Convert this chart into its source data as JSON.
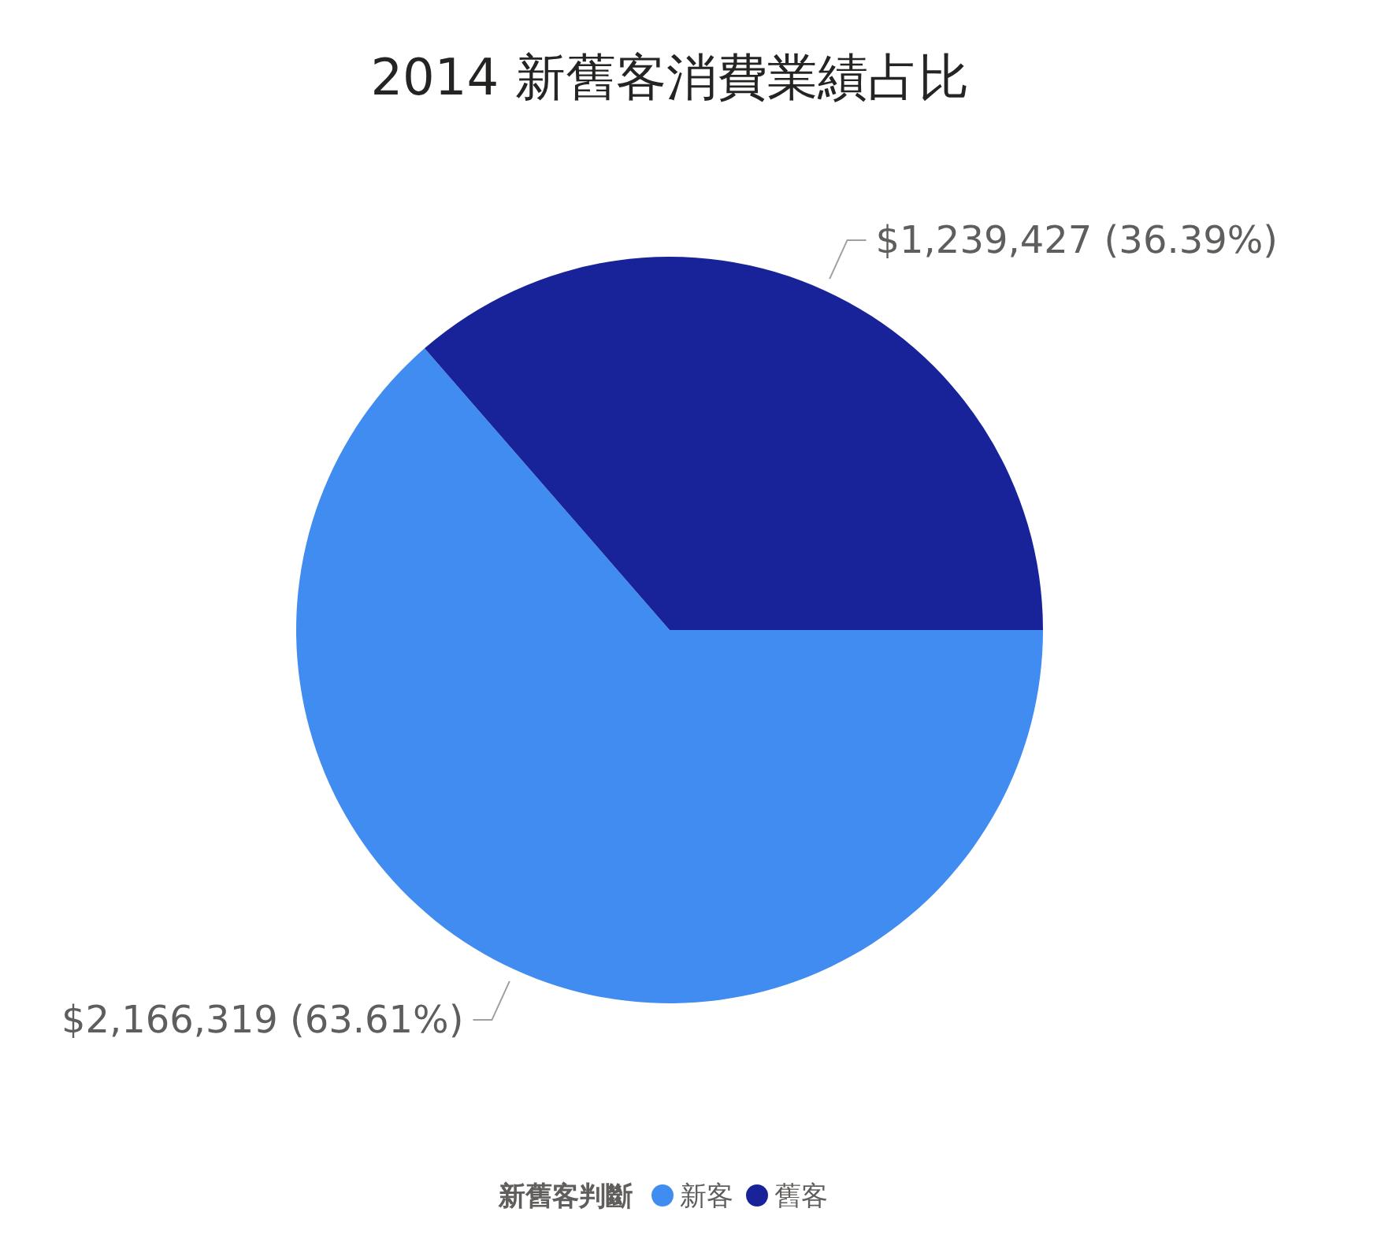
{
  "chart_data": {
    "type": "pie",
    "title": "2014 新舊客消費業績占比",
    "categories": [
      "新客",
      "舊客"
    ],
    "values": [
      2166319,
      1239427
    ],
    "colors": [
      "#418cf0",
      "#18239a"
    ],
    "value_labels": [
      "$2,166,319 (63.61%)",
      "$1,239,427 (36.39%)"
    ],
    "legend_title": "新舊客判斷",
    "legend": "bottom"
  }
}
